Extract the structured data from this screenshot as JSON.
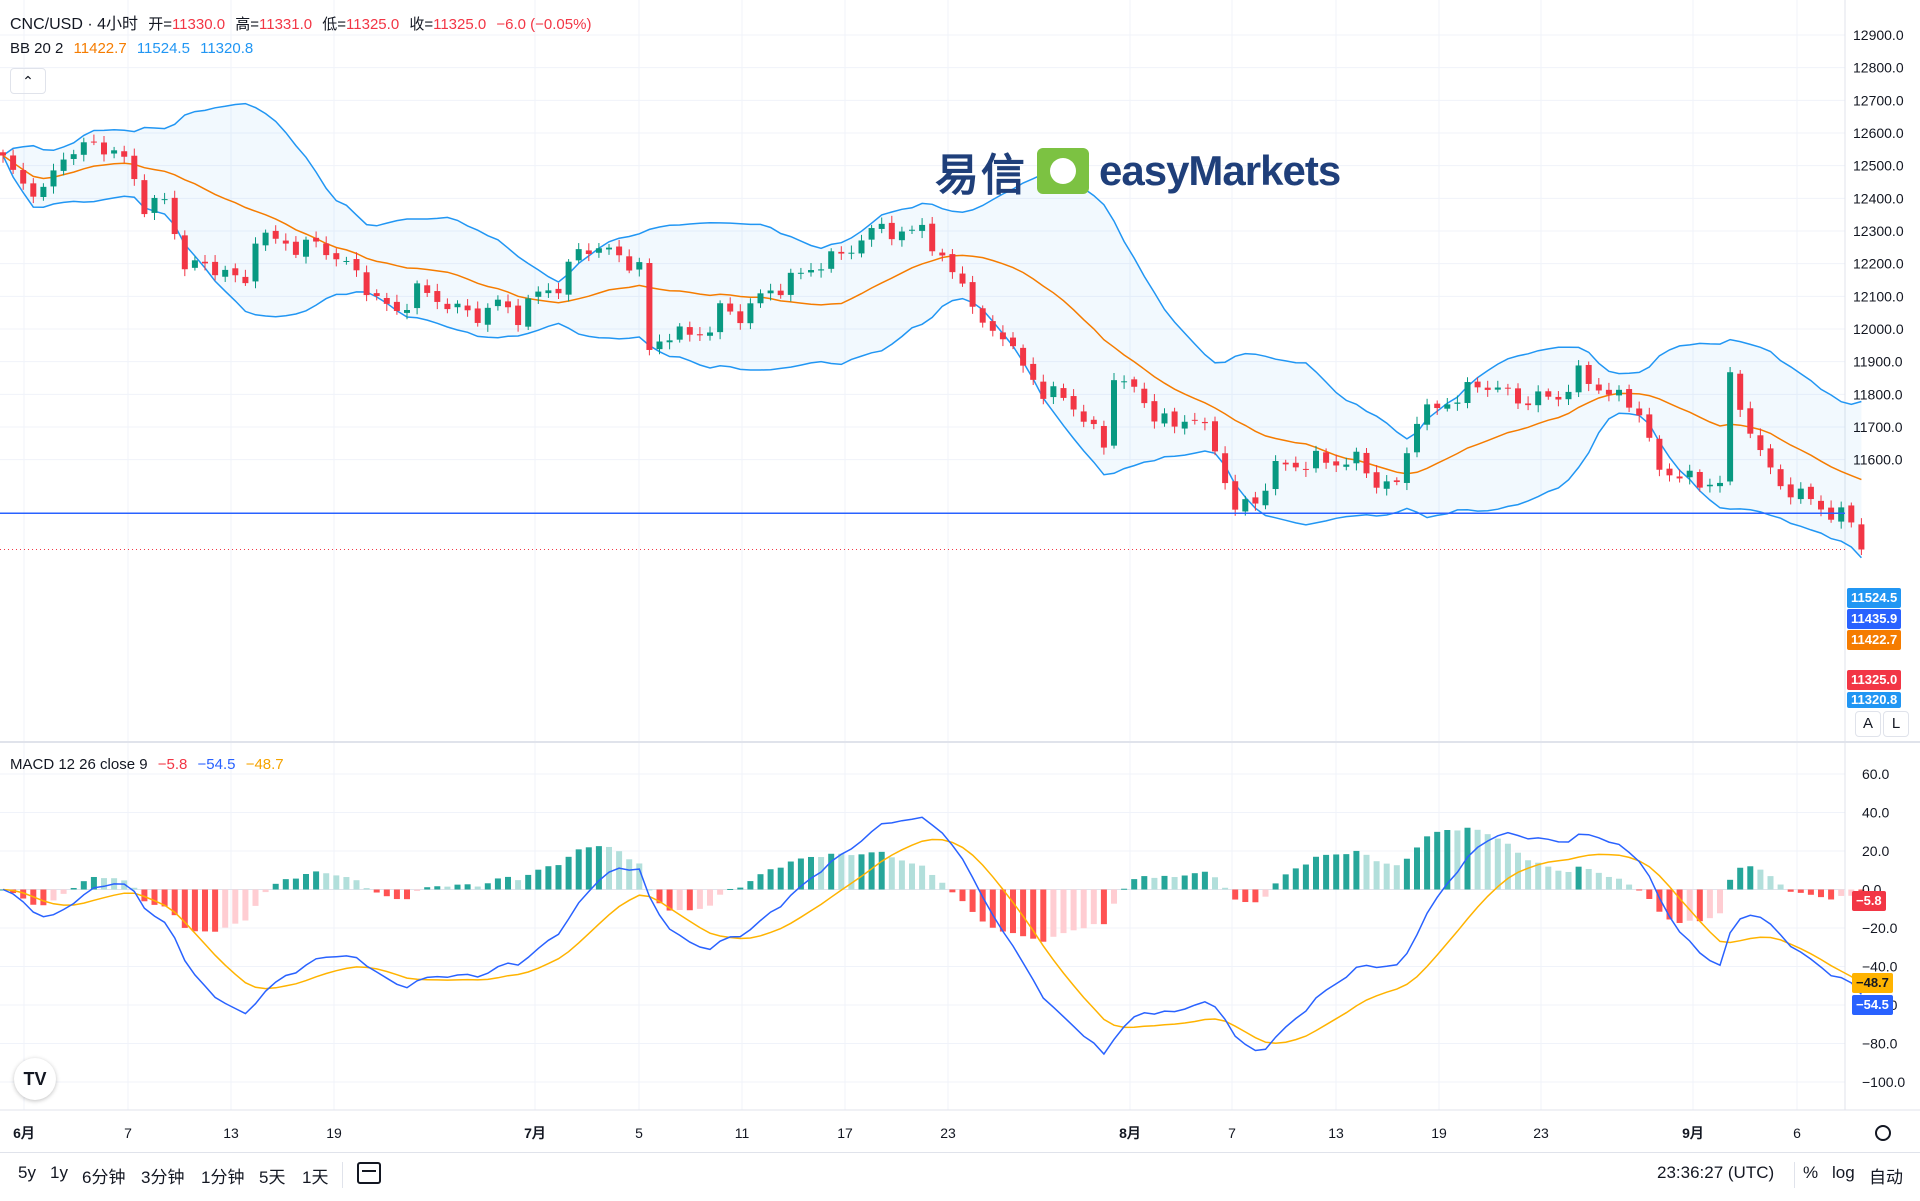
{
  "header": {
    "symbol": "CNC/USD · 4小时",
    "open_label": "开=",
    "open": "11330.0",
    "high_label": "高=",
    "high": "11331.0",
    "low_label": "低=",
    "low": "11325.0",
    "close_label": "收=",
    "close": "11325.0",
    "change": "−6.0 (−0.05%)"
  },
  "bb_legend": {
    "name": "BB 20 2",
    "basis": "11422.7",
    "upper": "11524.5",
    "lower": "11320.8"
  },
  "macd_legend": {
    "name": "MACD 12 26 close 9",
    "hist": "−5.8",
    "macd": "−54.5",
    "signal": "−48.7"
  },
  "logo": {
    "cn": "易信",
    "en": "easyMarkets"
  },
  "price_labels": {
    "upper": "11524.5",
    "hline": "11435.9",
    "basis": "11422.7",
    "last": "11325.0",
    "lower": "11320.8"
  },
  "macd_labels": {
    "hist": "−5.8",
    "signal": "−48.7",
    "macd": "−54.5"
  },
  "axis_buttons": {
    "auto": "A",
    "log": "L"
  },
  "timeframes": [
    "5y",
    "1y",
    "6分钟",
    "3分钟",
    "1分钟",
    "5天",
    "1天"
  ],
  "footer": {
    "clock": "23:36:27 (UTC)",
    "percent": "%",
    "log": "log",
    "auto": "自动"
  },
  "colors": {
    "up": "#089981",
    "down": "#f23645",
    "bb": "#2196f3",
    "basis": "#f57c00",
    "macd": "#2962ff",
    "signal": "#ffb300",
    "hline": "#2962ff"
  },
  "chart_data": [
    {
      "type": "candlestick",
      "title": "CNC/USD · 4小时",
      "x_ticks": [
        "6月",
        "7",
        "13",
        "19",
        "7月",
        "5",
        "11",
        "17",
        "23",
        "8月",
        "7",
        "13",
        "19",
        "23",
        "9月",
        "6"
      ],
      "y_ticks": [
        12900,
        12800,
        12700,
        12600,
        12500,
        12400,
        12300,
        12200,
        12100,
        12000,
        11900,
        11800,
        11700,
        11600
      ],
      "ylim": [
        11250,
        12950
      ],
      "close_path": [
        [
          0,
          12520
        ],
        [
          2,
          12440
        ],
        [
          4,
          12420
        ],
        [
          6,
          12530
        ],
        [
          8,
          12560
        ],
        [
          10,
          12560
        ],
        [
          12,
          12520
        ],
        [
          14,
          12380
        ],
        [
          16,
          12390
        ],
        [
          18,
          12200
        ],
        [
          20,
          12190
        ],
        [
          22,
          12180
        ],
        [
          24,
          12130
        ],
        [
          25,
          12290
        ],
        [
          27,
          12270
        ],
        [
          29,
          12250
        ],
        [
          31,
          12260
        ],
        [
          33,
          12220
        ],
        [
          35,
          12170
        ],
        [
          37,
          12090
        ],
        [
          39,
          12050
        ],
        [
          41,
          12120
        ],
        [
          43,
          12090
        ],
        [
          45,
          12060
        ],
        [
          47,
          12040
        ],
        [
          49,
          12080
        ],
        [
          51,
          12040
        ],
        [
          53,
          12110
        ],
        [
          55,
          12130
        ],
        [
          57,
          12240
        ],
        [
          59,
          12250
        ],
        [
          61,
          12220
        ],
        [
          63,
          12190
        ],
        [
          64,
          11930
        ],
        [
          66,
          11990
        ],
        [
          68,
          11980
        ],
        [
          70,
          12000
        ],
        [
          71,
          12060
        ],
        [
          73,
          12040
        ],
        [
          75,
          12100
        ],
        [
          77,
          12130
        ],
        [
          79,
          12170
        ],
        [
          81,
          12200
        ],
        [
          83,
          12230
        ],
        [
          85,
          12270
        ],
        [
          87,
          12320
        ],
        [
          89,
          12280
        ],
        [
          91,
          12320
        ],
        [
          93,
          12200
        ],
        [
          95,
          12150
        ],
        [
          97,
          12000
        ],
        [
          99,
          11990
        ],
        [
          101,
          11880
        ],
        [
          103,
          11810
        ],
        [
          105,
          11790
        ],
        [
          107,
          11730
        ],
        [
          109,
          11640
        ],
        [
          110,
          11860
        ],
        [
          112,
          11810
        ],
        [
          114,
          11740
        ],
        [
          116,
          11700
        ],
        [
          118,
          11740
        ],
        [
          120,
          11630
        ],
        [
          122,
          11450
        ],
        [
          124,
          11470
        ],
        [
          126,
          11580
        ],
        [
          128,
          11580
        ],
        [
          130,
          11600
        ],
        [
          132,
          11590
        ],
        [
          134,
          11600
        ],
        [
          136,
          11530
        ],
        [
          138,
          11520
        ],
        [
          140,
          11730
        ],
        [
          142,
          11760
        ],
        [
          144,
          11790
        ],
        [
          146,
          11830
        ],
        [
          148,
          11820
        ],
        [
          150,
          11780
        ],
        [
          152,
          11790
        ],
        [
          154,
          11790
        ],
        [
          156,
          11860
        ],
        [
          158,
          11820
        ],
        [
          160,
          11790
        ],
        [
          162,
          11750
        ],
        [
          164,
          11560
        ],
        [
          166,
          11560
        ],
        [
          168,
          11520
        ],
        [
          170,
          11540
        ],
        [
          171,
          11840
        ],
        [
          173,
          11690
        ],
        [
          175,
          11560
        ],
        [
          177,
          11500
        ],
        [
          179,
          11480
        ],
        [
          181,
          11430
        ],
        [
          183,
          11420
        ],
        [
          184,
          11420
        ]
      ],
      "bollinger": {
        "period": 20,
        "mult": 2,
        "last_basis": 11422.7,
        "last_upper": 11524.5,
        "last_lower": 11320.8
      },
      "horizontal_line": 11435.9,
      "last_price": 11325.0
    },
    {
      "type": "line+bar",
      "title": "MACD 12 26 close 9",
      "y_ticks": [
        60,
        40,
        20,
        0,
        -20,
        -40,
        -60,
        -80,
        -100
      ],
      "ylim": [
        -108,
        68
      ],
      "series": [
        {
          "name": "MACD",
          "last": -54.5
        },
        {
          "name": "Signal",
          "last": -48.7
        },
        {
          "name": "Histogram",
          "last": -5.8
        }
      ]
    }
  ]
}
